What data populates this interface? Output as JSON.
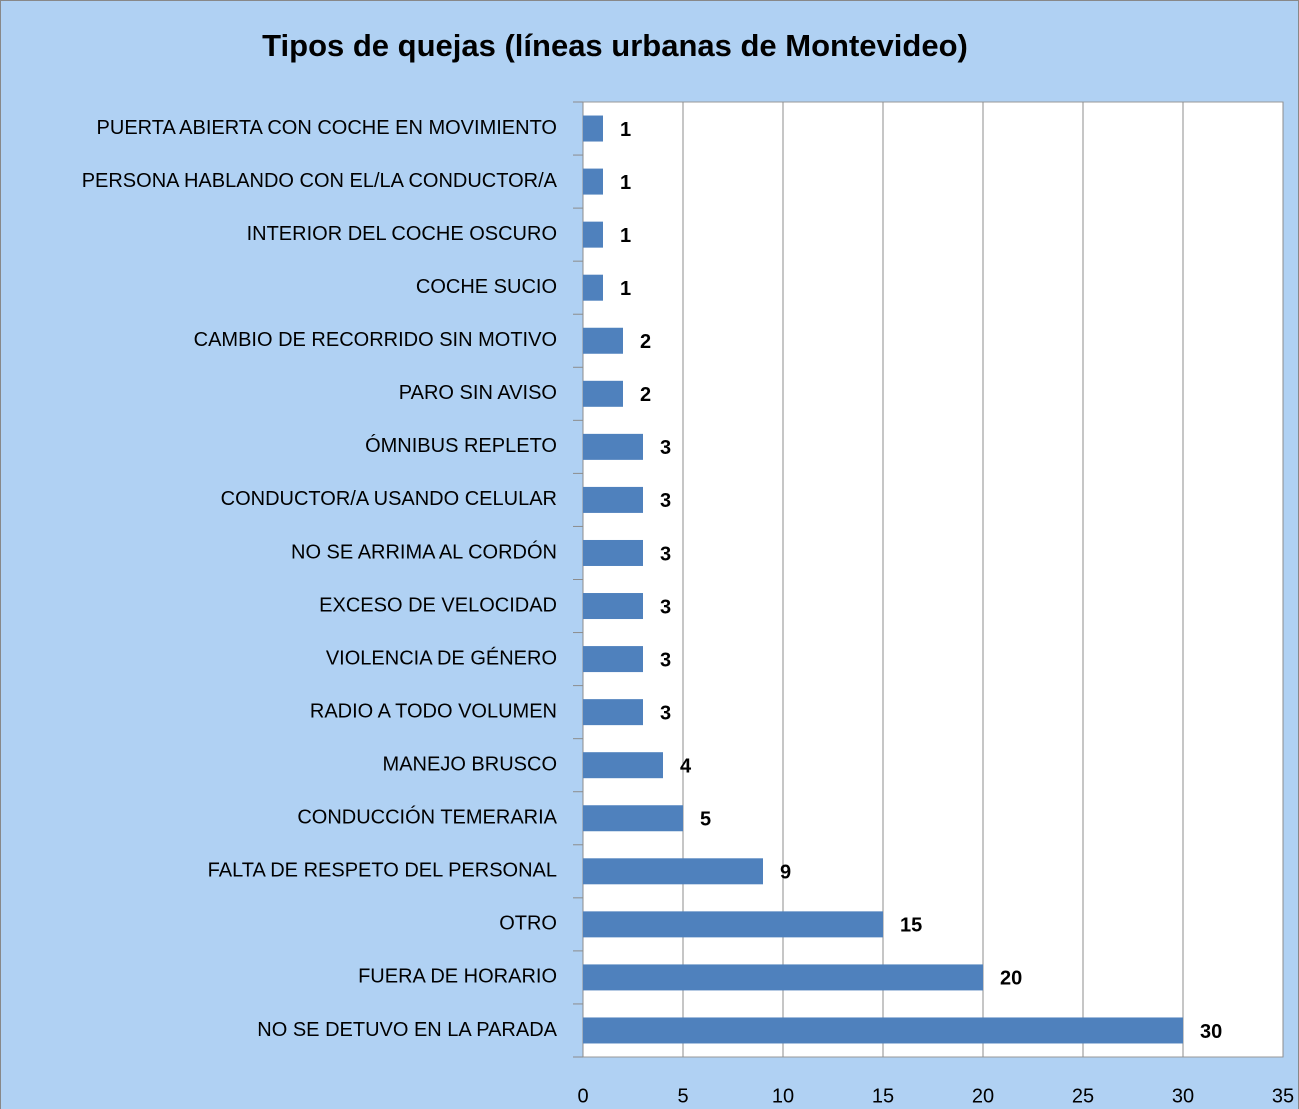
{
  "chart_data": {
    "type": "bar",
    "orientation": "horizontal",
    "title": "Tipos de quejas (líneas urbanas de Montevideo)",
    "categories": [
      "PUERTA ABIERTA CON COCHE EN MOVIMIENTO",
      "PERSONA HABLANDO CON EL/LA CONDUCTOR/A",
      "INTERIOR DEL COCHE OSCURO",
      "COCHE SUCIO",
      "CAMBIO DE RECORRIDO SIN MOTIVO",
      "PARO SIN AVISO",
      "ÓMNIBUS REPLETO",
      "CONDUCTOR/A USANDO CELULAR",
      "NO SE ARRIMA AL CORDÓN",
      "EXCESO DE VELOCIDAD",
      "VIOLENCIA DE GÉNERO",
      "RADIO A TODO VOLUMEN",
      "MANEJO BRUSCO",
      "CONDUCCIÓN TEMERARIA",
      "FALTA DE RESPETO DEL PERSONAL",
      "OTRO",
      "FUERA DE HORARIO",
      "NO SE DETUVO EN LA PARADA"
    ],
    "values": [
      1,
      1,
      1,
      1,
      2,
      2,
      3,
      3,
      3,
      3,
      3,
      3,
      4,
      5,
      9,
      15,
      20,
      30
    ],
    "color": "#4f81bd",
    "xlim": [
      0,
      35
    ],
    "xticks": [
      0,
      5,
      10,
      15,
      20,
      25,
      30,
      35
    ],
    "grid": true
  }
}
